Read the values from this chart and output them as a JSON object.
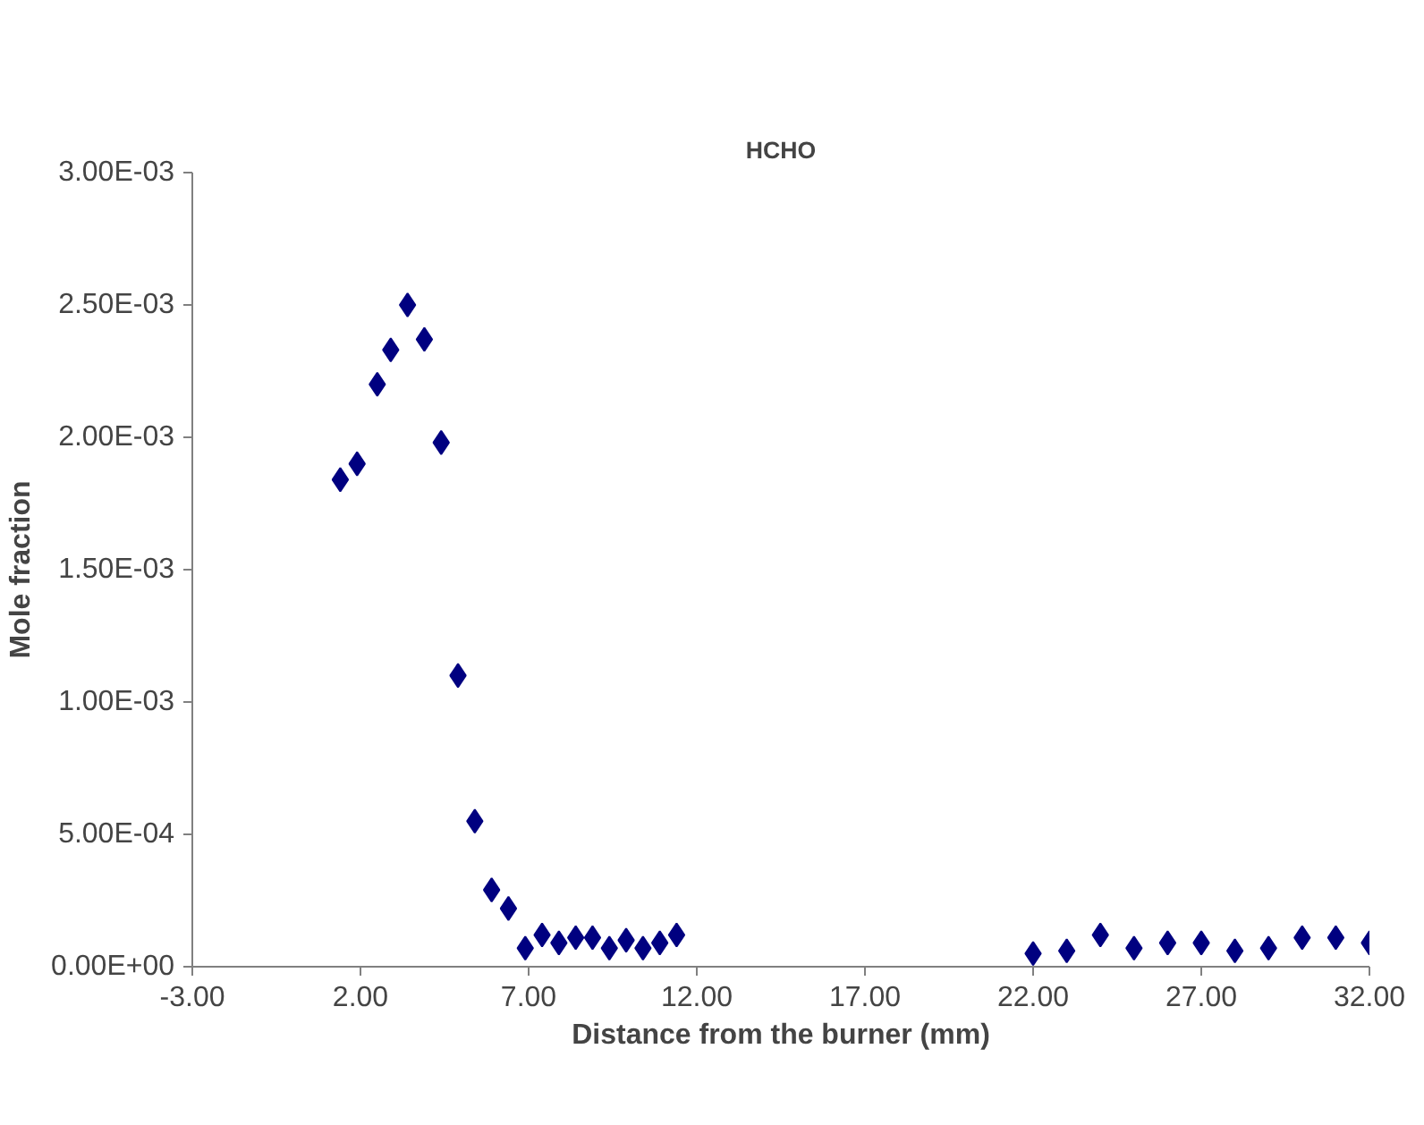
{
  "chart_data": {
    "type": "scatter",
    "title": "HCHO",
    "xlabel": "Distance from the burner (mm)",
    "ylabel": "Mole fraction",
    "x": [
      1.4,
      1.9,
      2.5,
      2.9,
      3.4,
      3.9,
      4.4,
      4.9,
      5.4,
      5.9,
      6.4,
      6.9,
      7.4,
      7.9,
      8.4,
      8.9,
      9.4,
      9.9,
      10.4,
      10.9,
      11.4,
      22,
      23,
      24,
      25,
      26,
      27,
      28,
      29,
      30,
      31,
      32
    ],
    "series": [
      {
        "color": "#000080",
        "values": [
          0.00184,
          0.0019,
          0.0022,
          0.00233,
          0.0025,
          0.00237,
          0.00198,
          0.0011,
          0.00055,
          0.00029,
          0.00022,
          7e-05,
          0.00012,
          9e-05,
          0.00011,
          0.00011,
          7e-05,
          0.0001,
          7e-05,
          9e-05,
          0.00012,
          5e-05,
          6e-05,
          0.00012,
          7e-05,
          9e-05,
          9e-05,
          6e-05,
          7e-05,
          0.00011,
          0.00011,
          9e-05
        ]
      }
    ],
    "xlim": [
      -3,
      32
    ],
    "ylim": [
      0,
      0.003
    ],
    "xticks": [
      {
        "value": -3,
        "label": "-3.00"
      },
      {
        "value": 2,
        "label": "2.00"
      },
      {
        "value": 7,
        "label": "7.00"
      },
      {
        "value": 12,
        "label": "12.00"
      },
      {
        "value": 17,
        "label": "17.00"
      },
      {
        "value": 22,
        "label": "22.00"
      },
      {
        "value": 27,
        "label": "27.00"
      },
      {
        "value": 32,
        "label": "32.00"
      }
    ],
    "yticks": [
      {
        "value": 0,
        "label": "0.00E+00"
      },
      {
        "value": 0.0005,
        "label": "5.00E-04"
      },
      {
        "value": 0.001,
        "label": "1.00E-03"
      },
      {
        "value": 0.0015,
        "label": "1.50E-03"
      },
      {
        "value": 0.002,
        "label": "2.00E-03"
      },
      {
        "value": 0.0025,
        "label": "2.50E-03"
      },
      {
        "value": 0.003,
        "label": "3.00E-03"
      }
    ],
    "grid": false,
    "marker": "diamond"
  }
}
